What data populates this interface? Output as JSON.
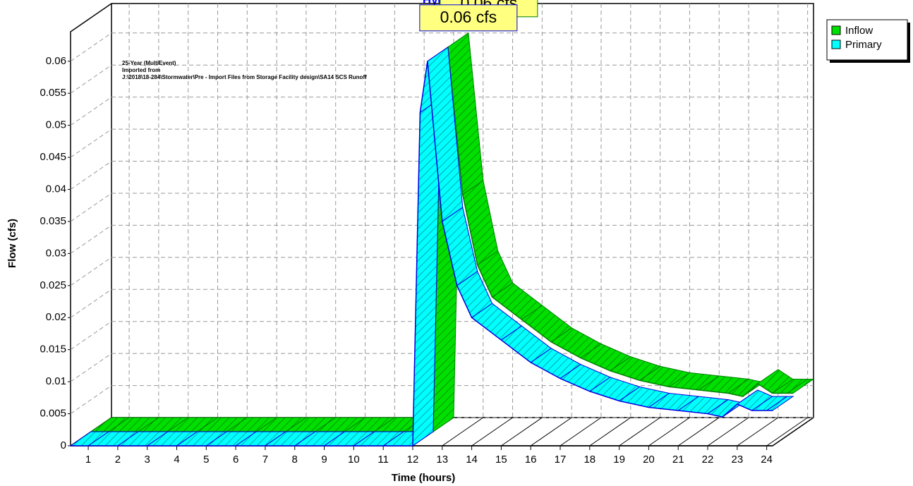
{
  "chart_data": {
    "type": "ribbon3d",
    "title": "Hydrograph",
    "xlabel": "Time  (hours)",
    "ylabel": "Flow  (cfs)",
    "annotations": [
      "25-Year (MultiEvent)",
      "Imported from",
      "J:\\2018\\18-284\\Stormwater\\Pre - Import Files from Storage Facility design\\SA14 SCS Runoff"
    ],
    "x": [
      0.4,
      1,
      2,
      3,
      4,
      5,
      6,
      7,
      8,
      9,
      10,
      11,
      12,
      12.25,
      12.5,
      13,
      13.5,
      14,
      15,
      16,
      17,
      18,
      19,
      20,
      21,
      22,
      22.5,
      23,
      23.5,
      24,
      24.2
    ],
    "series": [
      {
        "name": "Inflow",
        "color": "#00e000",
        "edge": "#008000",
        "values": [
          0,
          0,
          0,
          0,
          0,
          0,
          0,
          0,
          0,
          0,
          0,
          0,
          0,
          0.052,
          0.06,
          0.037,
          0.026,
          0.021,
          0.0175,
          0.014,
          0.0115,
          0.0095,
          0.008,
          0.007,
          0.0065,
          0.006,
          0.0055,
          0.0075,
          0.006,
          0.006,
          0.006
        ],
        "peak": {
          "value": 0.06,
          "label": "0.06 cfs"
        }
      },
      {
        "name": "Primary",
        "color": "#00ffff",
        "edge": "#0000e0",
        "values": [
          0,
          0,
          0,
          0,
          0,
          0,
          0,
          0,
          0,
          0,
          0,
          0,
          0,
          0.052,
          0.06,
          0.035,
          0.025,
          0.02,
          0.0165,
          0.013,
          0.0105,
          0.0085,
          0.007,
          0.006,
          0.0055,
          0.005,
          0.0045,
          0.0065,
          0.0055,
          0.0055,
          0.0055
        ],
        "peak": {
          "value": 0.06,
          "label": "0.06 cfs"
        }
      }
    ],
    "xlim": [
      0.4,
      24.2
    ],
    "ylim": [
      0,
      0.0646
    ],
    "xticks": [
      1,
      2,
      3,
      4,
      5,
      6,
      7,
      8,
      9,
      10,
      11,
      12,
      13,
      14,
      15,
      16,
      17,
      18,
      19,
      20,
      21,
      22,
      23,
      24
    ],
    "yticks": [
      0,
      0.005,
      0.01,
      0.015,
      0.02,
      0.025,
      0.03,
      0.035,
      0.04,
      0.045,
      0.05,
      0.055,
      0.06
    ],
    "grid": true,
    "legend": "top-right"
  }
}
